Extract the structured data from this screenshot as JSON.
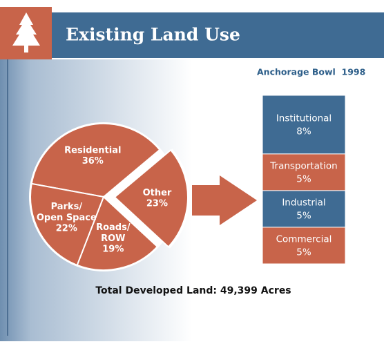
{
  "title": "Existing Land Use",
  "subtitle": "Anchorage Bowl  1998",
  "note": "Total Developed Land: 49,399 Acres",
  "chart_data": [
    {
      "type": "pie",
      "categories": [
        "Residential",
        "Other",
        "Roads/ROW",
        "Parks/Open Space"
      ],
      "values": [
        36,
        23,
        19,
        22
      ],
      "value_labels": [
        "36%",
        "23%",
        "19%",
        "22%"
      ],
      "color": "#c8644a",
      "exploded": "Other"
    },
    {
      "type": "bar",
      "stacked": true,
      "series": [
        {
          "name": "Institutional",
          "color": "#3f6b93",
          "values": [
            8
          ],
          "value_labels": [
            "8%"
          ]
        },
        {
          "name": "Transportation",
          "color": "#c8644a",
          "values": [
            5
          ],
          "value_labels": [
            "5%"
          ]
        },
        {
          "name": "Industrial",
          "color": "#3f6b93",
          "values": [
            5
          ],
          "value_labels": [
            "5%"
          ]
        },
        {
          "name": "Commercial",
          "color": "#c8644a",
          "values": [
            5
          ],
          "value_labels": [
            "5%"
          ]
        }
      ]
    }
  ]
}
